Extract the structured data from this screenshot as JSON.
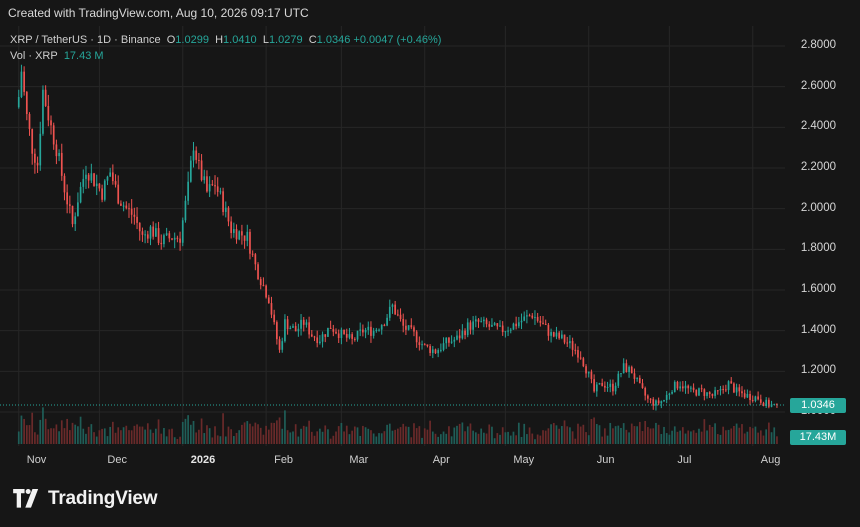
{
  "header": {
    "created": "Created with TradingView.com, Aug 10, 2026 09:17 UTC"
  },
  "legend": {
    "symbol": "XRP / TetherUS · 1D · Binance",
    "o_label": "O",
    "o_value": "1.0299",
    "h_label": "H",
    "h_value": "1.0410",
    "l_label": "L",
    "l_value": "1.0279",
    "c_label": "C",
    "c_value": "1.0346",
    "change": "+0.0047 (+0.46%)",
    "vol_label": "Vol · XRP",
    "vol_value": "17.43 M"
  },
  "price_tags": {
    "last_price": "1.0346",
    "volume": "17.43M"
  },
  "footer": {
    "brand": "TradingView"
  },
  "colors": {
    "up": "#26a69a",
    "down": "#ef5350",
    "vol_up": "#1f5e58",
    "vol_down": "#6a2a2a",
    "background": "#161616",
    "grid": "#262626"
  },
  "chart_data": {
    "type": "candlestick",
    "x_tick_labels": [
      "Nov",
      "Dec",
      "2026",
      "Feb",
      "Mar",
      "Apr",
      "May",
      "Jun",
      "Jul",
      "Aug"
    ],
    "y_tick_labels": [
      "2.8000",
      "2.6000",
      "2.4000",
      "2.2000",
      "2.0000",
      "1.8000",
      "1.6000",
      "1.4000",
      "1.2000",
      "1.0000"
    ],
    "ylim": [
      0.95,
      2.85
    ],
    "grid": true,
    "anchor_closes": [
      [
        "2025-11-01",
        2.55
      ],
      [
        "2025-11-02",
        2.68
      ],
      [
        "2025-11-04",
        2.45
      ],
      [
        "2025-11-06",
        2.3
      ],
      [
        "2025-11-08",
        2.22
      ],
      [
        "2025-11-10",
        2.58
      ],
      [
        "2025-11-13",
        2.4
      ],
      [
        "2025-11-15",
        2.3
      ],
      [
        "2025-11-18",
        2.1
      ],
      [
        "2025-11-21",
        1.92
      ],
      [
        "2025-11-23",
        2.05
      ],
      [
        "2025-11-26",
        2.2
      ],
      [
        "2025-11-29",
        2.14
      ],
      [
        "2025-12-02",
        2.08
      ],
      [
        "2025-12-05",
        2.18
      ],
      [
        "2025-12-08",
        2.06
      ],
      [
        "2025-12-11",
        2.0
      ],
      [
        "2025-12-14",
        1.96
      ],
      [
        "2025-12-17",
        1.86
      ],
      [
        "2025-12-20",
        1.9
      ],
      [
        "2025-12-24",
        1.84
      ],
      [
        "2025-12-28",
        1.86
      ],
      [
        "2025-12-31",
        1.86
      ],
      [
        "2026-01-03",
        2.1
      ],
      [
        "2026-01-05",
        2.32
      ],
      [
        "2026-01-07",
        2.2
      ],
      [
        "2026-01-10",
        2.08
      ],
      [
        "2026-01-13",
        2.12
      ],
      [
        "2026-01-16",
        2.02
      ],
      [
        "2026-01-19",
        1.9
      ],
      [
        "2026-01-22",
        1.88
      ],
      [
        "2026-01-25",
        1.86
      ],
      [
        "2026-01-28",
        1.72
      ],
      [
        "2026-01-31",
        1.62
      ],
      [
        "2026-02-02",
        1.56
      ],
      [
        "2026-02-04",
        1.42
      ],
      [
        "2026-02-06",
        1.3
      ],
      [
        "2026-02-08",
        1.44
      ],
      [
        "2026-02-12",
        1.4
      ],
      [
        "2026-02-15",
        1.44
      ],
      [
        "2026-02-18",
        1.38
      ],
      [
        "2026-02-21",
        1.36
      ],
      [
        "2026-02-25",
        1.42
      ],
      [
        "2026-03-01",
        1.38
      ],
      [
        "2026-03-05",
        1.35
      ],
      [
        "2026-03-09",
        1.4
      ],
      [
        "2026-03-13",
        1.4
      ],
      [
        "2026-03-17",
        1.45
      ],
      [
        "2026-03-20",
        1.52
      ],
      [
        "2026-03-24",
        1.42
      ],
      [
        "2026-03-28",
        1.38
      ],
      [
        "2026-04-01",
        1.32
      ],
      [
        "2026-04-05",
        1.3
      ],
      [
        "2026-04-09",
        1.34
      ],
      [
        "2026-04-13",
        1.36
      ],
      [
        "2026-04-17",
        1.42
      ],
      [
        "2026-04-21",
        1.44
      ],
      [
        "2026-04-25",
        1.42
      ],
      [
        "2026-04-29",
        1.4
      ],
      [
        "2026-05-03",
        1.42
      ],
      [
        "2026-05-07",
        1.45
      ],
      [
        "2026-05-11",
        1.48
      ],
      [
        "2026-05-14",
        1.44
      ],
      [
        "2026-05-18",
        1.38
      ],
      [
        "2026-05-22",
        1.36
      ],
      [
        "2026-05-26",
        1.32
      ],
      [
        "2026-05-29",
        1.28
      ],
      [
        "2026-06-01",
        1.18
      ],
      [
        "2026-06-03",
        1.1
      ],
      [
        "2026-06-06",
        1.14
      ],
      [
        "2026-06-10",
        1.12
      ],
      [
        "2026-06-14",
        1.22
      ],
      [
        "2026-06-17",
        1.2
      ],
      [
        "2026-06-20",
        1.12
      ],
      [
        "2026-06-23",
        1.06
      ],
      [
        "2026-06-26",
        1.04
      ],
      [
        "2026-06-29",
        1.06
      ],
      [
        "2026-07-02",
        1.12
      ],
      [
        "2026-07-05",
        1.14
      ],
      [
        "2026-07-09",
        1.1
      ],
      [
        "2026-07-13",
        1.1
      ],
      [
        "2026-07-17",
        1.08
      ],
      [
        "2026-07-20",
        1.1
      ],
      [
        "2026-07-23",
        1.14
      ],
      [
        "2026-07-26",
        1.1
      ],
      [
        "2026-07-30",
        1.08
      ],
      [
        "2026-08-03",
        1.07
      ],
      [
        "2026-08-06",
        1.04
      ],
      [
        "2026-08-09",
        1.03
      ],
      [
        "2026-08-10",
        1.0346
      ]
    ]
  }
}
